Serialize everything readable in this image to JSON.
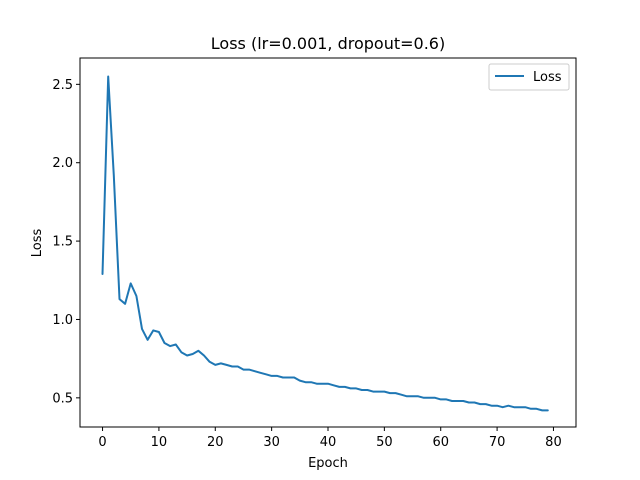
{
  "chart_data": {
    "type": "line",
    "title": "Loss (lr=0.001, dropout=0.6)",
    "xlabel": "Epoch",
    "ylabel": "Loss",
    "xlim": [
      -4,
      84
    ],
    "ylim": [
      0.314,
      2.668
    ],
    "xticks": [
      0,
      10,
      20,
      30,
      40,
      50,
      60,
      70,
      80
    ],
    "yticks": [
      0.5,
      1.0,
      1.5,
      2.0,
      2.5
    ],
    "xtick_labels": [
      "0",
      "10",
      "20",
      "30",
      "40",
      "50",
      "60",
      "70",
      "80"
    ],
    "ytick_labels": [
      "0.5",
      "1.0",
      "1.5",
      "2.0",
      "2.5"
    ],
    "grid": false,
    "legend_position": "top-right",
    "series": [
      {
        "name": "Loss",
        "color": "#1f77b4",
        "x": [
          0,
          1,
          2,
          3,
          4,
          5,
          6,
          7,
          8,
          9,
          10,
          11,
          12,
          13,
          14,
          15,
          16,
          17,
          18,
          19,
          20,
          21,
          22,
          23,
          24,
          25,
          26,
          27,
          28,
          29,
          30,
          31,
          32,
          33,
          34,
          35,
          36,
          37,
          38,
          39,
          40,
          41,
          42,
          43,
          44,
          45,
          46,
          47,
          48,
          49,
          50,
          51,
          52,
          53,
          54,
          55,
          56,
          57,
          58,
          59,
          60,
          61,
          62,
          63,
          64,
          65,
          66,
          67,
          68,
          69,
          70,
          71,
          72,
          73,
          74,
          75,
          76,
          77,
          78,
          79
        ],
        "values": [
          1.29,
          2.55,
          1.92,
          1.13,
          1.1,
          1.23,
          1.15,
          0.94,
          0.87,
          0.93,
          0.92,
          0.85,
          0.83,
          0.84,
          0.79,
          0.77,
          0.78,
          0.8,
          0.77,
          0.73,
          0.71,
          0.72,
          0.71,
          0.7,
          0.7,
          0.68,
          0.68,
          0.67,
          0.66,
          0.65,
          0.64,
          0.64,
          0.63,
          0.63,
          0.63,
          0.61,
          0.6,
          0.6,
          0.59,
          0.59,
          0.59,
          0.58,
          0.57,
          0.57,
          0.56,
          0.56,
          0.55,
          0.55,
          0.54,
          0.54,
          0.54,
          0.53,
          0.53,
          0.52,
          0.51,
          0.51,
          0.51,
          0.5,
          0.5,
          0.5,
          0.49,
          0.49,
          0.48,
          0.48,
          0.48,
          0.47,
          0.47,
          0.46,
          0.46,
          0.45,
          0.45,
          0.44,
          0.45,
          0.44,
          0.44,
          0.44,
          0.43,
          0.43,
          0.42,
          0.42
        ]
      }
    ]
  }
}
